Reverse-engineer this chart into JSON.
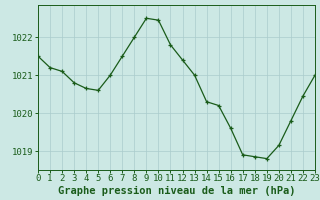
{
  "hours": [
    0,
    1,
    2,
    3,
    4,
    5,
    6,
    7,
    8,
    9,
    10,
    11,
    12,
    13,
    14,
    15,
    16,
    17,
    18,
    19,
    20,
    21,
    22,
    23
  ],
  "pressure": [
    1021.5,
    1021.2,
    1021.1,
    1020.8,
    1020.65,
    1020.6,
    1021.0,
    1021.5,
    1022.0,
    1022.5,
    1022.45,
    1021.8,
    1021.4,
    1021.0,
    1020.3,
    1020.2,
    1019.6,
    1018.9,
    1018.85,
    1018.8,
    1019.15,
    1019.8,
    1020.45,
    1021.0
  ],
  "line_color": "#1a5c1a",
  "marker": "+",
  "bg_color": "#cce8e4",
  "grid_color": "#aacccc",
  "ylabel_ticks": [
    1019,
    1020,
    1021,
    1022
  ],
  "ylim": [
    1018.5,
    1022.85
  ],
  "xlim": [
    0,
    23
  ],
  "xlabel": "Graphe pression niveau de la mer (hPa)",
  "xlabel_fontsize": 7.5,
  "tick_fontsize": 6.5
}
